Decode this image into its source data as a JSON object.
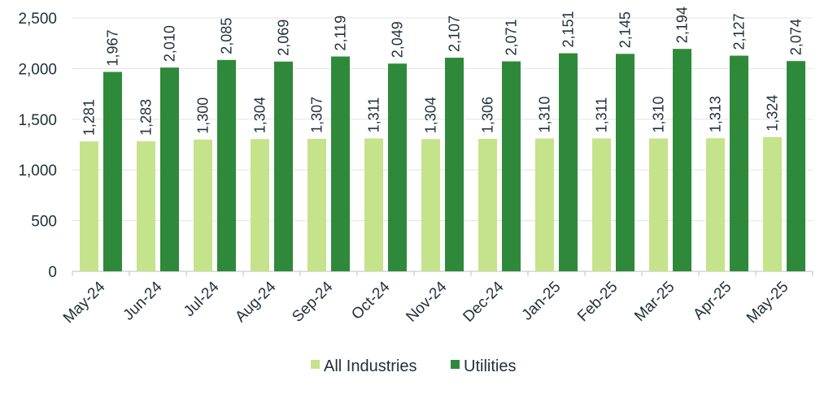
{
  "chart_data": {
    "type": "bar",
    "categories": [
      "May-24",
      "Jun-24",
      "Jul-24",
      "Aug-24",
      "Sep-24",
      "Oct-24",
      "Nov-24",
      "Dec-24",
      "Jan-25",
      "Feb-25",
      "Mar-25",
      "Apr-25",
      "May-25"
    ],
    "series": [
      {
        "name": "All Industries",
        "color": "#c5e38a",
        "values": [
          1281,
          1283,
          1300,
          1304,
          1307,
          1311,
          1304,
          1306,
          1310,
          1311,
          1310,
          1313,
          1324
        ],
        "labels": [
          "1,281",
          "1,283",
          "1,300",
          "1,304",
          "1,307",
          "1,311",
          "1,304",
          "1,306",
          "1,310",
          "1,311",
          "1,310",
          "1,313",
          "1,324"
        ]
      },
      {
        "name": "Utilities",
        "color": "#2e8a3a",
        "values": [
          1967,
          2010,
          2085,
          2069,
          2119,
          2049,
          2107,
          2071,
          2151,
          2145,
          2194,
          2127,
          2074
        ],
        "labels": [
          "1,967",
          "2,010",
          "2,085",
          "2,069",
          "2,119",
          "2,049",
          "2,107",
          "2,071",
          "2,151",
          "2,145",
          "2,194",
          "2,127",
          "2,074"
        ]
      }
    ],
    "ylim": [
      0,
      2500
    ],
    "yticks": [
      0,
      500,
      1000,
      1500,
      2000,
      2500
    ],
    "ytick_labels": [
      "0",
      "500",
      "1,000",
      "1,500",
      "2,000",
      "2,500"
    ],
    "grid": true,
    "legend_position": "bottom-center"
  }
}
